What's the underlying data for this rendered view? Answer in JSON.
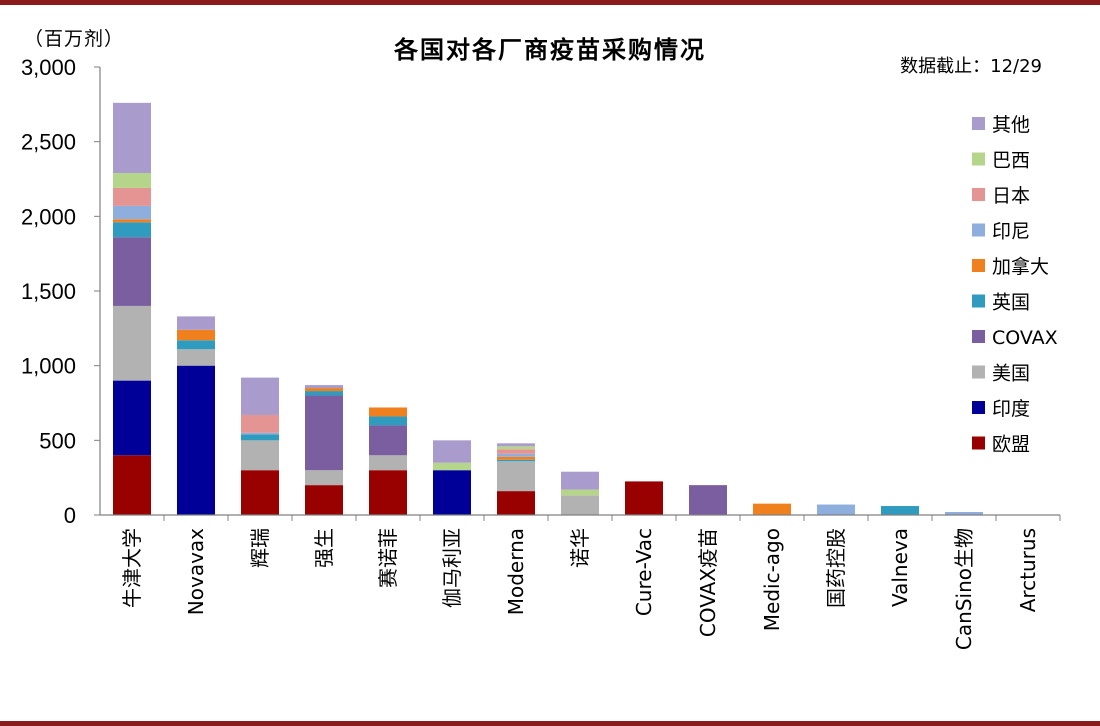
{
  "header": {
    "unit": "（百万剂）",
    "title": "各国对各厂商疫苗采购情况",
    "as_of": "数据截止：12/29"
  },
  "colors": {
    "欧盟": "#990000",
    "印度": "#000099",
    "美国": "#b2b2b2",
    "COVAX": "#7a5ea0",
    "英国": "#2f9bbf",
    "加拿大": "#f0801e",
    "印尼": "#8eaedd",
    "日本": "#e59494",
    "巴西": "#b5d68a",
    "其他": "#a99ccc",
    "axis": "#808080",
    "frame": "#8b1a1a"
  },
  "chart_data": {
    "type": "bar",
    "stacked": true,
    "title": "各国对各厂商疫苗采购情况",
    "ylabel": "（百万剂）",
    "ylim": [
      0,
      3000
    ],
    "yticks": [
      "0",
      "500",
      "1,000",
      "1,500",
      "2,000",
      "2,500",
      "3,000"
    ],
    "ytick_values": [
      0,
      500,
      1000,
      1500,
      2000,
      2500,
      3000
    ],
    "legend_position": "right",
    "categories": [
      "牛津大学",
      "Novavax",
      "辉瑞",
      "强生",
      "赛诺菲",
      "伽马利亚",
      "Moderna",
      "诺华",
      "Cure-Vac",
      "COVAX疫苗",
      "Medic-ago",
      "国药控股",
      "Valneva",
      "CanSino生物",
      "Arcturus"
    ],
    "series": [
      {
        "name": "欧盟",
        "values": [
          400,
          0,
          300,
          200,
          300,
          0,
          160,
          0,
          225,
          0,
          0,
          0,
          0,
          0,
          0
        ]
      },
      {
        "name": "印度",
        "values": [
          500,
          1000,
          0,
          0,
          0,
          300,
          0,
          0,
          0,
          0,
          0,
          0,
          0,
          0,
          0
        ]
      },
      {
        "name": "美国",
        "values": [
          500,
          110,
          200,
          100,
          100,
          0,
          200,
          130,
          0,
          0,
          0,
          0,
          0,
          0,
          0
        ]
      },
      {
        "name": "COVAX",
        "values": [
          460,
          0,
          0,
          500,
          200,
          0,
          0,
          0,
          0,
          200,
          0,
          0,
          0,
          0,
          0
        ]
      },
      {
        "name": "英国",
        "values": [
          100,
          60,
          40,
          30,
          60,
          0,
          10,
          0,
          0,
          0,
          0,
          0,
          60,
          0,
          0
        ]
      },
      {
        "name": "加拿大",
        "values": [
          20,
          70,
          0,
          20,
          60,
          0,
          20,
          0,
          0,
          0,
          76,
          0,
          0,
          0,
          0
        ]
      },
      {
        "name": "印尼",
        "values": [
          90,
          0,
          10,
          0,
          0,
          0,
          20,
          0,
          0,
          0,
          0,
          70,
          0,
          20,
          0
        ]
      },
      {
        "name": "日本",
        "values": [
          120,
          0,
          120,
          0,
          0,
          0,
          30,
          0,
          0,
          0,
          0,
          0,
          0,
          0,
          0
        ]
      },
      {
        "name": "巴西",
        "values": [
          100,
          0,
          0,
          0,
          0,
          50,
          20,
          40,
          0,
          0,
          0,
          0,
          0,
          0,
          0
        ]
      },
      {
        "name": "其他",
        "values": [
          470,
          90,
          250,
          20,
          0,
          150,
          20,
          120,
          0,
          0,
          0,
          0,
          0,
          0,
          0
        ]
      }
    ]
  }
}
